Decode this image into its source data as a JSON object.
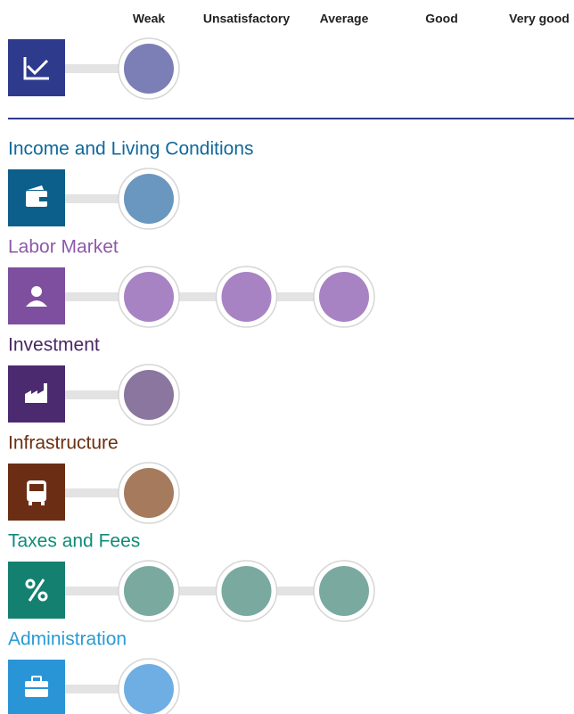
{
  "scale": [
    "Weak",
    "Unsatisfactory",
    "Average",
    "Good",
    "Very good"
  ],
  "overall": {
    "rating": 1,
    "icon_color": "#2e3a8c",
    "color": "#7b7fb5"
  },
  "rows": [
    {
      "label": "Income and Living Conditions",
      "rating": 1,
      "text_color": "#11699a",
      "icon_color": "#0b5f8a",
      "color": "#6a97c0"
    },
    {
      "label": "Labor Market",
      "rating": 3,
      "text_color": "#8e5aa8",
      "icon_color": "#7e4f9e",
      "color": "#a883c4"
    },
    {
      "label": "Investment",
      "rating": 1,
      "text_color": "#4a2766",
      "icon_color": "#4b2a70",
      "color": "#8a769e"
    },
    {
      "label": "Infrastructure",
      "rating": 1,
      "text_color": "#6b2f12",
      "icon_color": "#6b2e14",
      "color": "#a67a5c"
    },
    {
      "label": "Taxes and Fees",
      "rating": 3,
      "text_color": "#0f8a7a",
      "icon_color": "#138070",
      "color": "#7aa9a0"
    },
    {
      "label": "Administration",
      "rating": 1,
      "text_color": "#2a9ad6",
      "icon_color": "#2a95d6",
      "color": "#6eaee3"
    }
  ]
}
